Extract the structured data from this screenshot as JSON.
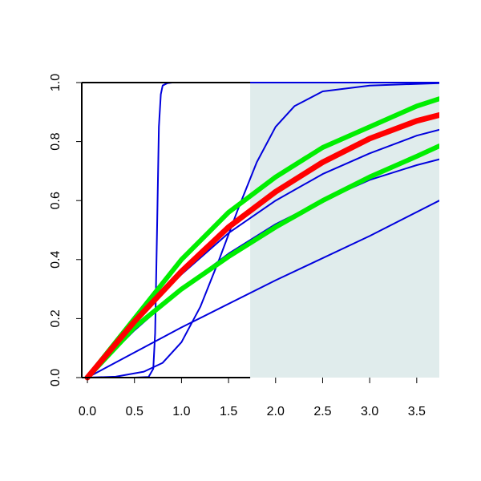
{
  "chart_data": {
    "type": "line",
    "title": "",
    "xlabel": "",
    "ylabel": "",
    "xlim": [
      -0.06,
      3.74
    ],
    "ylim": [
      0.0,
      1.0
    ],
    "x_ticks": [
      "0.0",
      "0.5",
      "1.0",
      "1.5",
      "2.0",
      "2.5",
      "3.0",
      "3.5"
    ],
    "y_ticks": [
      "0.0",
      "0.2",
      "0.4",
      "0.6",
      "0.8",
      "1.0"
    ],
    "grid": false,
    "legend": "none",
    "shaded_region": {
      "x_from": 1.73,
      "x_to": 3.74,
      "y_from": 0.0,
      "y_to": 1.0,
      "color": "#e0ecec"
    },
    "series": [
      {
        "color": "#0000dd",
        "width": 2,
        "x": [
          0.0,
          0.5,
          0.65,
          0.7,
          0.72,
          0.74,
          0.76,
          0.78,
          0.8,
          0.85,
          0.9,
          1.0,
          3.74
        ],
        "y": [
          0.0,
          0.0,
          0.002,
          0.03,
          0.15,
          0.5,
          0.85,
          0.96,
          0.99,
          0.998,
          1.0,
          1.0,
          1.0
        ]
      },
      {
        "color": "#0000dd",
        "width": 2,
        "x": [
          0.0,
          0.3,
          0.6,
          0.8,
          1.0,
          1.2,
          1.4,
          1.6,
          1.8,
          2.0,
          2.2,
          2.5,
          3.0,
          3.74
        ],
        "y": [
          0.0,
          0.003,
          0.02,
          0.05,
          0.12,
          0.24,
          0.4,
          0.57,
          0.73,
          0.85,
          0.92,
          0.97,
          0.99,
          0.998
        ]
      },
      {
        "color": "#0000dd",
        "width": 2,
        "x": [
          0.0,
          0.5,
          1.0,
          1.5,
          2.0,
          2.5,
          3.0,
          3.5,
          3.74
        ],
        "y": [
          0.0,
          0.19,
          0.35,
          0.49,
          0.6,
          0.69,
          0.76,
          0.82,
          0.84
        ]
      },
      {
        "color": "#0000dd",
        "width": 2,
        "x": [
          0.0,
          0.5,
          1.0,
          1.5,
          2.0,
          2.5,
          3.0,
          3.5,
          3.74
        ],
        "y": [
          0.0,
          0.16,
          0.3,
          0.42,
          0.52,
          0.6,
          0.67,
          0.72,
          0.74
        ]
      },
      {
        "color": "#0000dd",
        "width": 2,
        "x": [
          0.0,
          1.0,
          2.0,
          3.0,
          3.74
        ],
        "y": [
          0.0,
          0.17,
          0.33,
          0.48,
          0.6
        ]
      },
      {
        "color": "#0000dd",
        "width": 2,
        "x": [
          0.0,
          0.5,
          1.0,
          1.5,
          2.0,
          2.5,
          3.0,
          3.5,
          3.74
        ],
        "y": [
          0.0,
          0.19,
          0.36,
          0.51,
          0.63,
          0.73,
          0.81,
          0.87,
          0.89
        ]
      },
      {
        "color": "#00ee00",
        "width": 6,
        "x": [
          0.0,
          0.5,
          1.0,
          1.5,
          2.0,
          2.5,
          3.0,
          3.5,
          3.74
        ],
        "y": [
          0.0,
          0.2,
          0.4,
          0.56,
          0.68,
          0.78,
          0.85,
          0.92,
          0.945
        ]
      },
      {
        "color": "#00ee00",
        "width": 6,
        "x": [
          0.0,
          0.5,
          1.0,
          1.5,
          2.0,
          2.5,
          3.0,
          3.5,
          3.74
        ],
        "y": [
          0.0,
          0.17,
          0.3,
          0.41,
          0.51,
          0.6,
          0.68,
          0.75,
          0.785
        ]
      },
      {
        "color": "#ff0000",
        "width": 7,
        "x": [
          0.0,
          0.5,
          1.0,
          1.5,
          2.0,
          2.5,
          3.0,
          3.5,
          3.74
        ],
        "y": [
          0.0,
          0.19,
          0.36,
          0.51,
          0.63,
          0.73,
          0.81,
          0.87,
          0.89
        ]
      }
    ]
  }
}
